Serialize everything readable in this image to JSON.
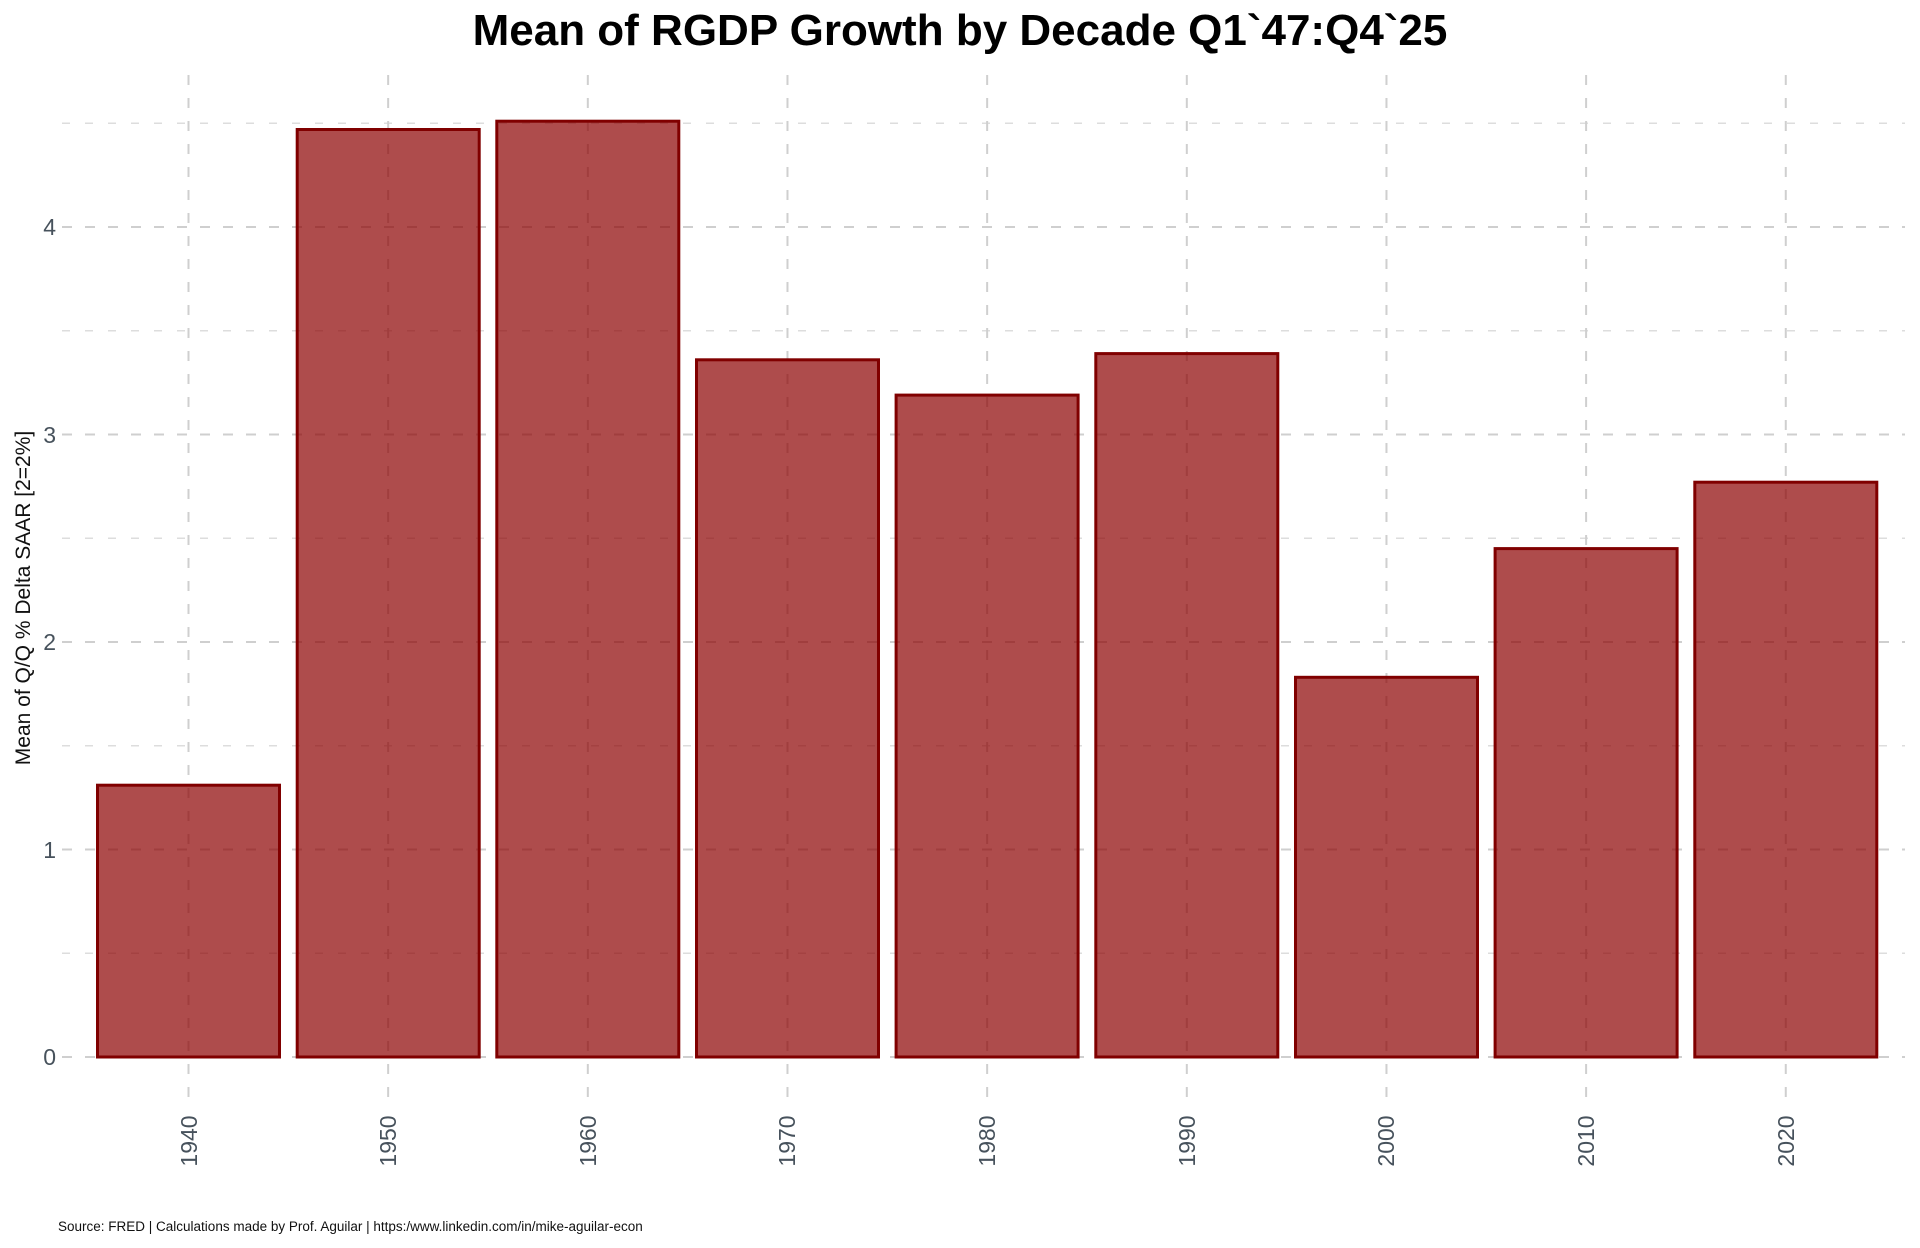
{
  "page": {
    "title": "Mean of RGDP Growth by Decade Q1`47:Q4`25"
  },
  "footer": {
    "source": "Source: FRED | Calculations made by Prof. Aguilar | https:/www.linkedin.com/in/mike-aguilar-econ"
  },
  "chart_data": {
    "type": "bar",
    "title": "Mean of RGDP Growth by Decade Q1`47:Q4`25",
    "xlabel": "",
    "ylabel": "Mean of Q/Q % Delta SAAR [2=2%]",
    "categories": [
      "1940",
      "1950",
      "1960",
      "1970",
      "1980",
      "1990",
      "2000",
      "2010",
      "2020"
    ],
    "values": [
      1.31,
      4.47,
      4.51,
      3.36,
      3.19,
      3.39,
      1.83,
      2.45,
      2.77
    ],
    "ylim": [
      0,
      4.73
    ],
    "yticks_major": [
      0,
      1,
      2,
      3,
      4
    ],
    "yticks_minor": [
      0.5,
      1.5,
      2.5,
      3.5,
      4.5
    ],
    "grid": "dashed, major and minor horizontal, major vertical at each bar",
    "legend": "none",
    "colors": {
      "bar_fill": "#8B0000",
      "bar_fill_opacity": 0.7,
      "bar_stroke": "#800000",
      "grid_major": "#cfcfcf",
      "grid_minor": "#dddddd",
      "tick_text": "#47525c",
      "title_text": "#000000"
    }
  }
}
